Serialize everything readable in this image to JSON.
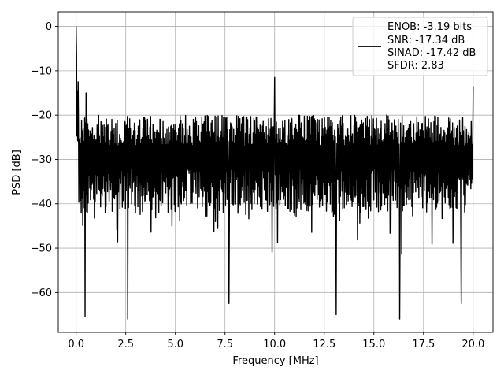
{
  "chart_data": {
    "type": "line",
    "title": "",
    "xlabel": "Frequency [MHz]",
    "ylabel": "PSD [dB]",
    "xlim": [
      -0.9,
      21.0
    ],
    "ylim": [
      -69.0,
      3.3
    ],
    "xticks": [
      0.0,
      2.5,
      5.0,
      7.5,
      10.0,
      12.5,
      15.0,
      17.5,
      20.0
    ],
    "xtick_labels": [
      "0.0",
      "2.5",
      "5.0",
      "7.5",
      "10.0",
      "12.5",
      "15.0",
      "17.5",
      "20.0"
    ],
    "yticks": [
      0,
      -10,
      -20,
      -30,
      -40,
      -50,
      -60
    ],
    "ytick_labels": [
      "0",
      "−10",
      "−20",
      "−30",
      "−40",
      "−50",
      "−60"
    ],
    "grid": true,
    "legend_position": "top-right",
    "legend_lines": [
      "ENOB: -3.19 bits",
      "SNR: -17.34 dB",
      "SINAD: -17.42 dB",
      "SFDR: 2.83"
    ],
    "series": [
      {
        "color": "#000000",
        "x_range": [
          0.0,
          20.0
        ],
        "points": 1024,
        "noise_band": {
          "upper": -20.0,
          "lower": -42.0,
          "mean": -30.0
        },
        "spikes": [
          {
            "x": 0.0,
            "y": 0.0
          },
          {
            "x": 0.02,
            "y": -6.0
          },
          {
            "x": 0.05,
            "y": -14.5
          },
          {
            "x": 0.1,
            "y": -12.5
          },
          {
            "x": 0.45,
            "y": -65.5
          },
          {
            "x": 0.5,
            "y": -15.0
          },
          {
            "x": 2.6,
            "y": -66.0
          },
          {
            "x": 7.7,
            "y": -62.5
          },
          {
            "x": 10.0,
            "y": -11.5
          },
          {
            "x": 13.1,
            "y": -65.0
          },
          {
            "x": 16.3,
            "y": -66.0
          },
          {
            "x": 19.4,
            "y": -62.5
          },
          {
            "x": 20.0,
            "y": -13.5
          }
        ]
      }
    ]
  }
}
